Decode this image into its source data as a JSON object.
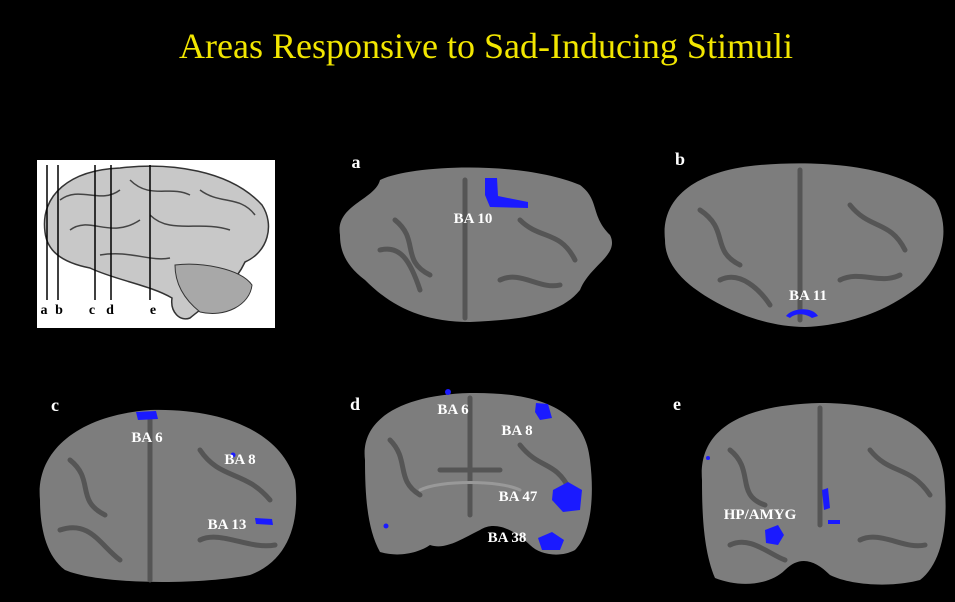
{
  "title": "Areas Responsive to Sad-Inducing Stimuli",
  "diagram": {
    "slice_labels": [
      "a",
      "b",
      "c",
      "d",
      "e"
    ]
  },
  "panels": [
    {
      "label": "a",
      "regions": [
        "BA 10"
      ]
    },
    {
      "label": "b",
      "regions": [
        "BA 11"
      ]
    },
    {
      "label": "c",
      "regions": [
        "BA 6",
        "BA 8",
        "BA 13"
      ]
    },
    {
      "label": "d",
      "regions": [
        "BA 6",
        "BA 8",
        "BA 47",
        "BA 38"
      ]
    },
    {
      "label": "e",
      "regions": [
        "HP/AMYG"
      ]
    }
  ]
}
